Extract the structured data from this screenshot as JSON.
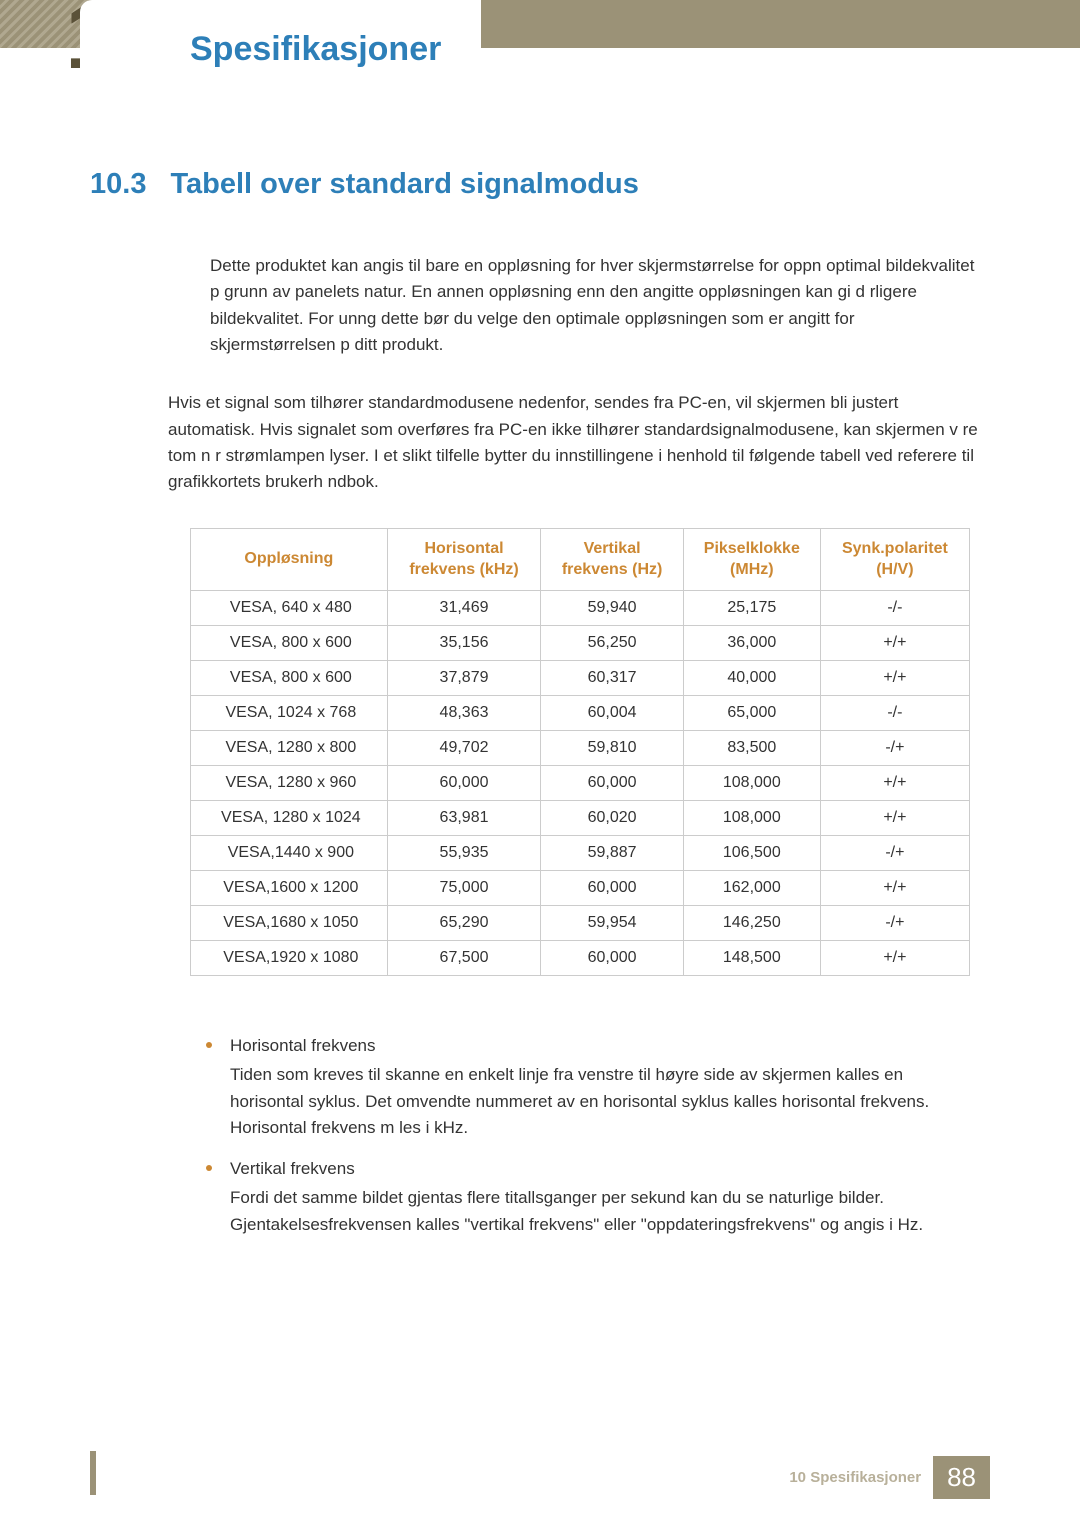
{
  "header": {
    "chapter_number": "10",
    "title": "Spesifikasjoner"
  },
  "section": {
    "number": "10.3",
    "title": "Tabell over standard signalmodus"
  },
  "intro_text": "Dette produktet kan angis til bare en oppløsning for hver skjermstørrelse for   oppn  optimal bildekvalitet p  grunn av panelets natur. En annen oppløsning enn den angitte oppløsningen kan gi d rligere bildekvalitet. For   unng  dette bør du velge den optimale oppløsningen som er angitt for skjermstørrelsen p  ditt produkt.",
  "body_text": "Hvis et signal som tilhører standardmodusene nedenfor, sendes fra PC-en, vil skjermen bli justert automatisk. Hvis signalet som overføres fra PC-en ikke tilhører standardsignalmodusene, kan skjermen v re tom n r strømlampen lyser. I et slikt tilfelle bytter du innstillingene i henhold til følgende tabell ved referere til grafikkortets brukerh ndbok.",
  "table": {
    "columns": [
      "Oppløsning",
      "Horisontal frekvens (kHz)",
      "Vertikal frekvens (Hz)",
      "Pikselklokke (MHz)",
      "Synk.polaritet (H/V)"
    ],
    "column_headers": [
      {
        "l1": "Oppløsning",
        "l2": ""
      },
      {
        "l1": "Horisontal",
        "l2": "frekvens (kHz)"
      },
      {
        "l1": "Vertikal",
        "l2": "frekvens (Hz)"
      },
      {
        "l1": "Pikselklokke",
        "l2": "(MHz)"
      },
      {
        "l1": "Synk.polaritet",
        "l2": "(H/V)"
      }
    ],
    "rows": [
      [
        "VESA, 640 x 480",
        "31,469",
        "59,940",
        "25,175",
        "-/-"
      ],
      [
        "VESA, 800 x 600",
        "35,156",
        "56,250",
        "36,000",
        "+/+"
      ],
      [
        "VESA, 800 x 600",
        "37,879",
        "60,317",
        "40,000",
        "+/+"
      ],
      [
        "VESA, 1024 x 768",
        "48,363",
        "60,004",
        "65,000",
        "-/-"
      ],
      [
        "VESA, 1280 x 800",
        "49,702",
        "59,810",
        "83,500",
        "-/+"
      ],
      [
        "VESA, 1280 x 960",
        "60,000",
        "60,000",
        "108,000",
        "+/+"
      ],
      [
        "VESA, 1280 x 1024",
        "63,981",
        "60,020",
        "108,000",
        "+/+"
      ],
      [
        "VESA,1440 x 900",
        "55,935",
        "59,887",
        "106,500",
        "-/+"
      ],
      [
        "VESA,1600 x 1200",
        "75,000",
        "60,000",
        "162,000",
        "+/+"
      ],
      [
        "VESA,1680 x 1050",
        "65,290",
        "59,954",
        "146,250",
        "-/+"
      ],
      [
        "VESA,1920 x 1080",
        "67,500",
        "60,000",
        "148,500",
        "+/+"
      ]
    ],
    "header_color": "#cc8833",
    "border_color": "#cccccc"
  },
  "notes": [
    {
      "label": "Horisontal frekvens",
      "body": "Tiden som kreves til   skanne en enkelt linje fra venstre til høyre side av skjermen kalles en horisontal syklus. Det omvendte nummeret av en horisontal syklus kalles horisontal frekvens. Horisontal frekvens m les i kHz."
    },
    {
      "label": "Vertikal frekvens",
      "body": "Fordi det samme bildet gjentas flere titallsganger per sekund kan du se naturlige bilder. Gjentakelsesfrekvensen kalles \"vertikal frekvens\" eller \"oppdateringsfrekvens\" og angis i Hz."
    }
  ],
  "footer": {
    "label": "10 Spesifikasjoner",
    "page": "88"
  },
  "colors": {
    "accent_blue": "#2d7fb8",
    "accent_orange": "#cc8833",
    "band": "#9b9277",
    "chapter_number": "#5a5138"
  }
}
